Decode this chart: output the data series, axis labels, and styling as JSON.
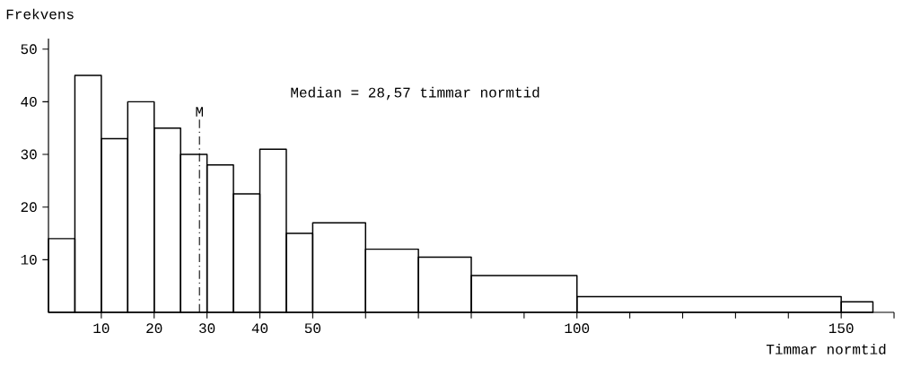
{
  "chart_data": {
    "type": "histogram",
    "bins": [
      0,
      5,
      10,
      15,
      20,
      25,
      30,
      35,
      40,
      45,
      50,
      60,
      70,
      80,
      100,
      150,
      156
    ],
    "values": [
      14,
      45,
      33,
      40,
      35,
      30,
      28,
      22.5,
      31,
      15,
      17,
      12,
      10.5,
      7,
      3,
      2
    ],
    "color": "#000000",
    "xlabel": "Timmar normtid",
    "ylabel": "Frekvens",
    "xlim": [
      0,
      160
    ],
    "ylim": [
      0,
      52
    ],
    "xticks": [
      10,
      20,
      30,
      40,
      50,
      {
        "value": 60,
        "label": null
      },
      {
        "value": 70,
        "label": null
      },
      {
        "value": 80,
        "label": null
      },
      {
        "value": 90,
        "label": null
      },
      100,
      {
        "value": 110,
        "label": null
      },
      {
        "value": 120,
        "label": null
      },
      {
        "value": 130,
        "label": null
      },
      {
        "value": 140,
        "label": null
      },
      150,
      {
        "value": 160,
        "label": null
      }
    ],
    "yticks": [
      10,
      20,
      30,
      40,
      50
    ],
    "grid": false,
    "ref_lines": [
      {
        "axis": "x",
        "value": 28.57,
        "label": "M",
        "line_style": "dashdot"
      }
    ],
    "annotations": [
      "Median = 28,57 timmar normtid"
    ]
  }
}
